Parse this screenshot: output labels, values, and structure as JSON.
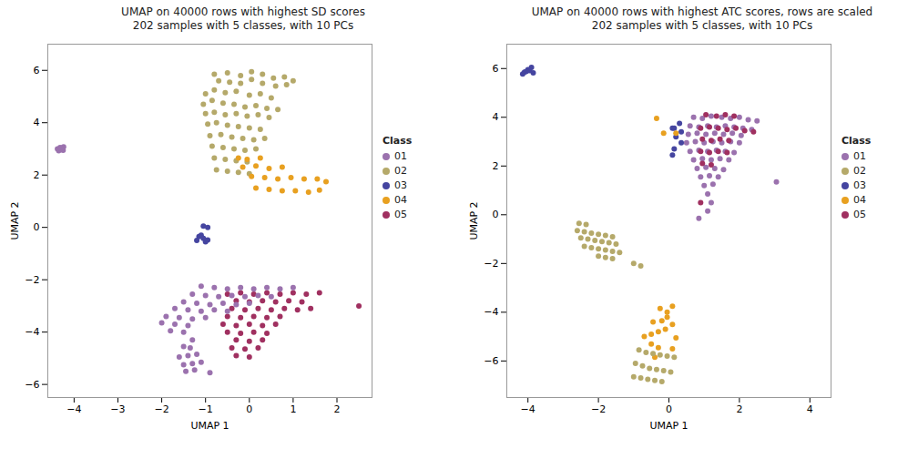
{
  "chart_data": [
    {
      "type": "scatter",
      "title": "UMAP on 40000 rows with highest SD scores\n202 samples with 5 classes, with 10 PCs",
      "xlabel": "UMAP 1",
      "ylabel": "UMAP 2",
      "xlim": [
        -4.6,
        2.8
      ],
      "ylim": [
        -6.5,
        7.0
      ],
      "xticks": [
        -4,
        -3,
        -2,
        -1,
        0,
        1,
        2
      ],
      "yticks": [
        -6,
        -4,
        -2,
        0,
        2,
        4,
        6
      ],
      "grid": false,
      "legend": "right",
      "legend_title": "Class",
      "marker": "circle",
      "categories": [
        "01",
        "02",
        "03",
        "04",
        "05"
      ],
      "series": [
        {
          "name": "01",
          "color": "#9B72AE",
          "x": [
            -4.38,
            -4.32,
            -4.28,
            -4.24,
            -4.35,
            -4.3,
            -4.25
          ],
          "values": [
            3.0,
            3.05,
            2.97,
            3.08,
            2.93,
            3.02,
            2.95
          ]
        },
        {
          "name": "02",
          "color": "#B5A96A",
          "x": [
            -0.8,
            -0.5,
            -0.2,
            0.05,
            0.3,
            0.55,
            0.8,
            1.0,
            -0.7,
            -0.45,
            -0.2,
            0.05,
            0.3,
            0.6,
            0.85,
            -1.0,
            -0.8,
            -0.55,
            -0.3,
            0.0,
            0.25,
            0.5,
            -1.05,
            -0.85,
            -0.6,
            -0.35,
            -0.1,
            0.15,
            0.4,
            0.65,
            -1.0,
            -0.8,
            -0.55,
            -0.3,
            -0.05,
            0.2,
            0.45,
            -0.95,
            -0.75,
            -0.5,
            -0.25,
            0.0,
            0.25,
            -0.9,
            -0.65,
            -0.4,
            -0.15,
            0.1,
            0.35,
            -0.85,
            -0.6,
            -0.35,
            -0.1,
            0.15,
            -0.8,
            -0.55,
            -0.3,
            -0.05,
            -0.75,
            -0.5,
            -0.25,
            0.0
          ],
          "values": [
            5.85,
            5.9,
            5.8,
            5.95,
            5.85,
            5.7,
            5.75,
            5.6,
            5.6,
            5.55,
            5.5,
            5.65,
            5.5,
            5.4,
            5.45,
            5.1,
            5.25,
            5.15,
            5.2,
            5.05,
            5.1,
            4.95,
            4.7,
            4.85,
            4.75,
            4.7,
            4.6,
            4.65,
            4.55,
            4.5,
            4.35,
            4.4,
            4.3,
            4.35,
            4.25,
            4.3,
            4.2,
            3.95,
            4.0,
            3.9,
            3.85,
            3.8,
            3.75,
            3.5,
            3.55,
            3.45,
            3.4,
            3.35,
            3.4,
            3.1,
            3.05,
            3.0,
            2.95,
            3.0,
            2.65,
            2.6,
            2.55,
            2.5,
            2.2,
            2.15,
            2.1,
            2.05
          ]
        },
        {
          "name": "03",
          "color": "#4545A0",
          "x": [
            -1.05,
            -0.95,
            -1.1,
            -1.15,
            -1.05,
            -0.95,
            -1.2,
            -1.0
          ],
          "values": [
            0.05,
            -0.0,
            -0.3,
            -0.35,
            -0.42,
            -0.48,
            -0.5,
            -0.55
          ]
        },
        {
          "name": "04",
          "color": "#E8A020",
          "x": [
            -0.25,
            -0.05,
            0.25,
            -0.15,
            0.15,
            0.45,
            0.75,
            0.05,
            0.35,
            0.65,
            0.95,
            1.25,
            1.55,
            1.75,
            0.15,
            0.45,
            0.75,
            1.05,
            1.35,
            1.6
          ],
          "values": [
            2.65,
            2.6,
            2.65,
            2.3,
            2.35,
            2.25,
            2.3,
            1.95,
            1.9,
            1.85,
            1.9,
            1.85,
            1.85,
            1.75,
            1.5,
            1.45,
            1.4,
            1.4,
            1.35,
            1.42
          ]
        },
        {
          "name": "05",
          "color": "#A03060",
          "x": [
            -0.5,
            -0.2,
            0.1,
            0.4,
            0.7,
            1.0,
            1.3,
            1.6,
            -0.3,
            0.0,
            0.3,
            0.6,
            0.9,
            1.2,
            -0.4,
            -0.1,
            0.2,
            0.5,
            0.8,
            1.1,
            1.4,
            -0.5,
            -0.2,
            0.1,
            0.4,
            0.7,
            -0.6,
            -0.3,
            0.0,
            0.3,
            0.6,
            -0.5,
            -0.2,
            0.1,
            0.4,
            -0.3,
            0.0,
            0.3,
            -0.4,
            -0.1,
            0.2,
            -0.3,
            0.0,
            2.5
          ],
          "values": [
            -2.55,
            -2.5,
            -2.55,
            -2.5,
            -2.55,
            -2.5,
            -2.55,
            -2.5,
            -2.8,
            -2.85,
            -2.8,
            -2.85,
            -2.8,
            -2.85,
            -3.1,
            -3.15,
            -3.1,
            -3.15,
            -3.1,
            -3.15,
            -3.1,
            -3.4,
            -3.45,
            -3.4,
            -3.45,
            -3.4,
            -3.7,
            -3.75,
            -3.7,
            -3.75,
            -3.7,
            -4.0,
            -4.05,
            -4.0,
            -4.05,
            -4.3,
            -4.35,
            -4.3,
            -4.6,
            -4.65,
            -4.6,
            -4.9,
            -4.95,
            -3.0
          ]
        },
        {
          "name": "01",
          "color": "#9B72AE",
          "x": [
            -1.1,
            -0.8,
            -0.5,
            -0.2,
            0.1,
            0.4,
            0.7,
            1.0,
            -1.3,
            -1.0,
            -0.7,
            -0.4,
            -0.1,
            0.2,
            0.5,
            -1.5,
            -1.2,
            -0.9,
            -0.6,
            -0.3,
            0.0,
            -1.7,
            -1.4,
            -1.1,
            -0.8,
            -0.5,
            -1.9,
            -1.6,
            -1.3,
            -1.0,
            -2.0,
            -1.7,
            -1.4,
            -1.8,
            -1.5,
            -1.3,
            -1.5,
            -1.35,
            -1.2,
            -1.4,
            -1.6,
            -1.1,
            -1.3,
            -1.5,
            -1.25,
            -1.45,
            -0.9
          ],
          "values": [
            -2.25,
            -2.3,
            -2.35,
            -2.3,
            -2.35,
            -2.3,
            -2.35,
            -2.3,
            -2.55,
            -2.6,
            -2.65,
            -2.6,
            -2.65,
            -2.6,
            -2.65,
            -2.85,
            -2.9,
            -2.95,
            -2.9,
            -2.95,
            -2.9,
            -3.1,
            -3.15,
            -3.2,
            -3.15,
            -3.2,
            -3.4,
            -3.45,
            -3.5,
            -3.45,
            -3.65,
            -3.7,
            -3.75,
            -3.95,
            -4.0,
            -4.3,
            -4.55,
            -4.6,
            -4.85,
            -4.9,
            -4.95,
            -5.15,
            -5.2,
            -5.25,
            -5.45,
            -5.5,
            -5.55
          ]
        }
      ]
    },
    {
      "type": "scatter",
      "title": "UMAP on 40000 rows with highest ATC scores, rows are scaled\n202 samples with 5 classes, with 10 PCs",
      "xlabel": "UMAP 1",
      "ylabel": "UMAP 2",
      "xlim": [
        -4.6,
        4.6
      ],
      "ylim": [
        -7.5,
        7.0
      ],
      "xticks": [
        -4,
        -2,
        0,
        2,
        4
      ],
      "yticks": [
        -6,
        -4,
        -2,
        0,
        2,
        4,
        6
      ],
      "grid": false,
      "legend": "right",
      "legend_title": "Class",
      "marker": "circle",
      "categories": [
        "01",
        "02",
        "03",
        "04",
        "05"
      ],
      "series": [
        {
          "name": "03",
          "color": "#4545A0",
          "x": [
            -3.9,
            -4.0,
            -4.1,
            -3.95,
            -4.05,
            -3.85,
            -4.15
          ],
          "values": [
            6.05,
            5.95,
            5.85,
            5.92,
            5.88,
            5.82,
            5.78
          ]
        },
        {
          "name": "01",
          "color": "#9B72AE",
          "x": [
            0.7,
            0.95,
            1.2,
            1.5,
            1.75,
            2.0,
            2.25,
            2.5,
            0.6,
            0.85,
            1.1,
            1.35,
            1.6,
            1.85,
            2.1,
            2.35,
            0.55,
            0.8,
            1.05,
            1.3,
            1.55,
            1.8,
            2.05,
            0.5,
            0.75,
            1.0,
            1.25,
            1.5,
            1.75,
            2.0,
            0.6,
            0.85,
            1.1,
            1.35,
            1.6,
            1.85,
            0.7,
            0.95,
            1.2,
            1.45,
            1.7,
            0.8,
            1.05,
            1.3,
            1.55,
            0.9,
            1.15,
            1.4,
            1.0,
            1.25,
            1.1,
            1.2,
            1.1,
            0.85,
            3.05
          ],
          "values": [
            4.0,
            3.95,
            4.05,
            4.0,
            3.95,
            4.0,
            3.9,
            3.85,
            3.65,
            3.6,
            3.65,
            3.6,
            3.65,
            3.6,
            3.55,
            3.5,
            3.3,
            3.35,
            3.3,
            3.35,
            3.3,
            3.35,
            3.25,
            2.95,
            3.0,
            2.95,
            3.0,
            2.95,
            3.0,
            2.95,
            2.6,
            2.65,
            2.6,
            2.65,
            2.6,
            2.55,
            2.25,
            2.3,
            2.25,
            2.3,
            2.25,
            1.9,
            1.95,
            1.9,
            1.85,
            1.55,
            1.6,
            1.55,
            1.2,
            1.25,
            0.85,
            0.5,
            0.15,
            -0.15,
            1.35
          ]
        },
        {
          "name": "03",
          "color": "#4545A0",
          "x": [
            0.3,
            0.15,
            0.35,
            0.2,
            0.1,
            0.35,
            0.15,
            0.1
          ],
          "values": [
            3.75,
            3.55,
            3.4,
            3.2,
            3.55,
            2.95,
            2.7,
            2.45
          ]
        },
        {
          "name": "04",
          "color": "#E8A020",
          "x": [
            -0.35,
            -0.15,
            0.2
          ],
          "values": [
            3.95,
            3.35,
            3.35
          ]
        },
        {
          "name": "05",
          "color": "#A03060",
          "x": [
            1.05,
            1.35,
            1.6,
            1.85,
            0.9,
            1.15,
            1.4,
            1.65,
            1.9,
            2.15,
            2.4,
            0.95,
            1.2,
            1.45,
            1.7,
            0.9,
            1.15,
            1.4,
            1.65,
            0.95,
            1.2,
            0.9
          ],
          "values": [
            4.1,
            4.05,
            4.1,
            4.05,
            3.55,
            3.6,
            3.55,
            3.5,
            3.55,
            3.45,
            3.4,
            3.1,
            3.05,
            3.1,
            3.05,
            2.6,
            2.55,
            2.6,
            2.55,
            2.1,
            2.05,
            0.5
          ]
        },
        {
          "name": "02",
          "color": "#B5A96A",
          "x": [
            -2.55,
            -2.35,
            -2.6,
            -2.4,
            -2.2,
            -2.0,
            -1.8,
            -1.6,
            -2.5,
            -2.3,
            -2.1,
            -1.9,
            -1.7,
            -1.5,
            -2.4,
            -2.2,
            -2.0,
            -1.8,
            -1.6,
            -1.4,
            -2.0,
            -1.8,
            -1.6,
            -1.0,
            -0.8
          ],
          "values": [
            -0.35,
            -0.4,
            -0.65,
            -0.7,
            -0.75,
            -0.8,
            -0.85,
            -0.9,
            -0.95,
            -1.0,
            -1.05,
            -1.1,
            -1.15,
            -1.2,
            -1.3,
            -1.35,
            -1.4,
            -1.45,
            -1.5,
            -1.55,
            -1.7,
            -1.75,
            -1.8,
            -2.0,
            -2.1
          ]
        },
        {
          "name": "04",
          "color": "#E8A020",
          "x": [
            -0.25,
            -0.05,
            0.1,
            -0.05,
            -0.2,
            -0.45,
            0.1,
            -0.1,
            -0.3,
            -0.5,
            -0.7,
            0.2,
            -0.5,
            -0.3,
            0.1,
            -0.4
          ],
          "values": [
            -3.85,
            -4.0,
            -3.75,
            -4.2,
            -4.35,
            -4.4,
            -4.5,
            -4.7,
            -4.8,
            -4.9,
            -5.0,
            -5.05,
            -5.3,
            -5.45,
            -5.5,
            -5.85
          ]
        },
        {
          "name": "02",
          "color": "#B5A96A",
          "x": [
            -0.85,
            -0.65,
            -0.45,
            -0.25,
            -0.05,
            0.15,
            -0.95,
            -0.75,
            -0.55,
            -0.35,
            -0.15,
            0.05,
            -1.0,
            -0.8,
            -0.6,
            -0.4,
            -0.2
          ],
          "values": [
            -5.55,
            -5.65,
            -5.7,
            -5.75,
            -5.8,
            -5.85,
            -6.1,
            -6.2,
            -6.3,
            -6.35,
            -6.4,
            -6.45,
            -6.65,
            -6.7,
            -6.75,
            -6.8,
            -6.85
          ]
        }
      ]
    }
  ]
}
